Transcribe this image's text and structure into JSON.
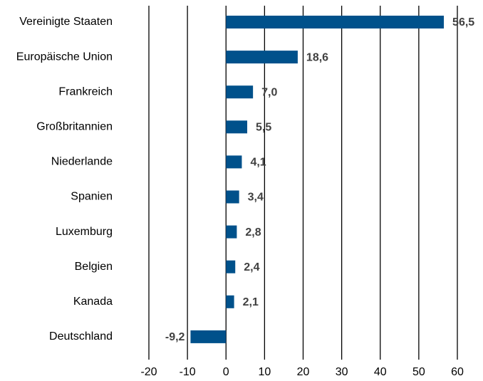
{
  "chart_data": {
    "type": "barh",
    "categories": [
      "Vereinigte Staaten",
      "Europäische Union",
      "Frankreich",
      "Großbritannien",
      "Niederlande",
      "Spanien",
      "Luxemburg",
      "Belgien",
      "Kanada",
      "Deutschland"
    ],
    "values": [
      56.5,
      18.6,
      7.0,
      5.5,
      4.1,
      3.4,
      2.8,
      2.4,
      2.1,
      -9.2
    ],
    "value_labels": [
      "56,5",
      "18,6",
      "7,0",
      "5,5",
      "4,1",
      "3,4",
      "2,8",
      "2,4",
      "2,1",
      "-9,2"
    ],
    "color": "#00518b",
    "xlim": [
      -20,
      60
    ],
    "xticks": [
      -20,
      -10,
      0,
      10,
      20,
      30,
      40,
      50,
      60
    ],
    "grid": true
  }
}
